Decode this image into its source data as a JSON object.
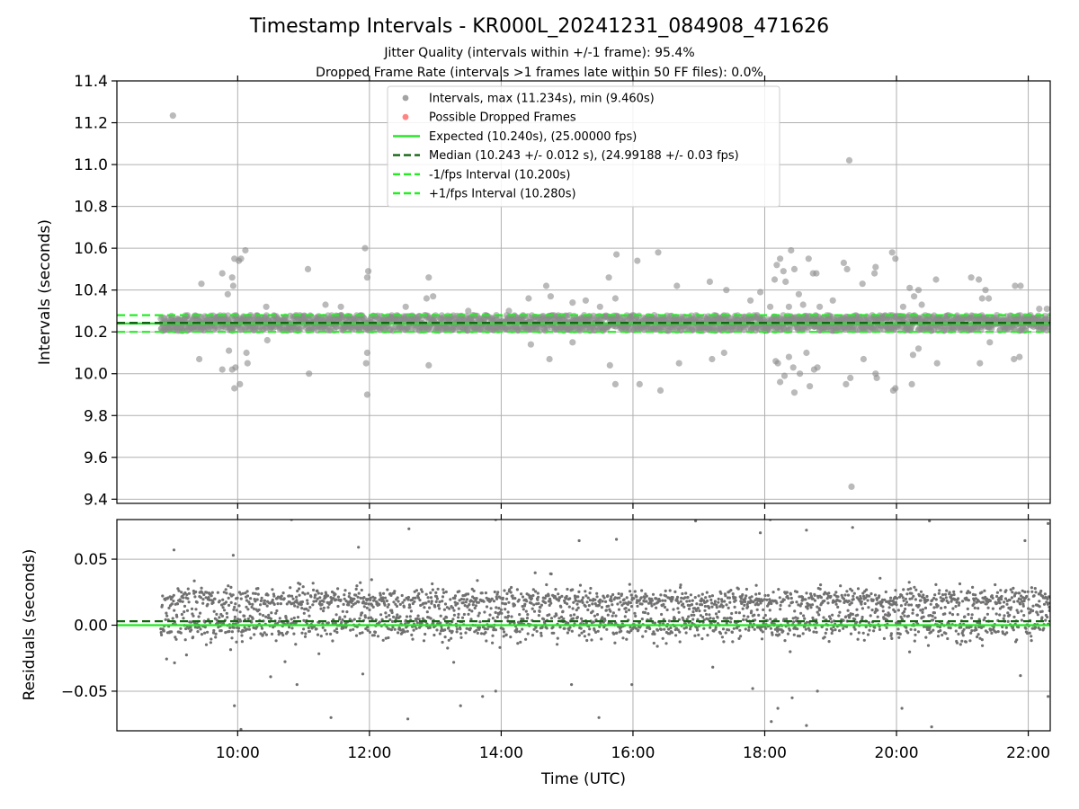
{
  "title": "Timestamp Intervals - KR000L_20241231_084908_471626",
  "subtitle_1": "Jitter Quality (intervals within +/-1 frame): 95.4%",
  "subtitle_2": "Dropped Frame Rate (intervals >1 frames late within 50 FF files): 0.0%",
  "colors": {
    "intervals": "#8c8c8c",
    "dropped": "#ff6666",
    "expected": "#22e622",
    "median": "#116611",
    "bound": "#22ee22",
    "residuals": "#707070"
  },
  "chart_data": [
    {
      "type": "scatter",
      "ylabel": "Intervals (seconds)",
      "xlim": [
        "08:10",
        "22:20"
      ],
      "ylim": [
        9.38,
        11.4
      ],
      "x_ticks": [
        "10:00",
        "12:00",
        "14:00",
        "16:00",
        "18:00",
        "20:00",
        "22:00"
      ],
      "y_ticks": [
        "9.4",
        "9.6",
        "9.8",
        "10.0",
        "10.2",
        "10.4",
        "10.6",
        "10.8",
        "11.0",
        "11.2",
        "11.4"
      ],
      "grid": true,
      "legend_position": "top-center",
      "legend": [
        {
          "label": "Intervals, max (11.234s), min (9.460s)",
          "kind": "dot",
          "color_key": "intervals"
        },
        {
          "label": "Possible Dropped Frames",
          "kind": "dot",
          "color_key": "dropped"
        },
        {
          "label": "Expected (10.240s), (25.00000 fps)",
          "kind": "line",
          "color_key": "expected"
        },
        {
          "label": "Median (10.243 +/- 0.012 s), (24.99188 +/- 0.03 fps)",
          "kind": "dash",
          "color_key": "median"
        },
        {
          "label": "-1/fps Interval (10.200s)",
          "kind": "dash",
          "color_key": "bound"
        },
        {
          "label": "+1/fps Interval (10.280s)",
          "kind": "dash",
          "color_key": "bound"
        }
      ],
      "lines": {
        "expected": 10.24,
        "median": 10.243,
        "lower": 10.2,
        "upper": 10.28
      },
      "data_x_range": [
        "08:50",
        "22:20"
      ],
      "band": {
        "low": 10.205,
        "high": 10.28
      },
      "outliers": [
        [
          "09:01",
          11.234
        ],
        [
          "09:46",
          10.48
        ],
        [
          "09:51",
          10.38
        ],
        [
          "09:55",
          10.46
        ],
        [
          "09:57",
          10.55
        ],
        [
          "09:56",
          10.42
        ],
        [
          "10:01",
          10.54
        ],
        [
          "10:03",
          10.55
        ],
        [
          "10:07",
          10.59
        ],
        [
          "09:27",
          10.43
        ],
        [
          "09:52",
          10.11
        ],
        [
          "09:55",
          10.02
        ],
        [
          "09:58",
          10.03
        ],
        [
          "09:46",
          10.02
        ],
        [
          "09:57",
          9.93
        ],
        [
          "10:02",
          9.95
        ],
        [
          "10:08",
          10.1
        ],
        [
          "10:09",
          10.05
        ],
        [
          "09:25",
          10.07
        ],
        [
          "10:26",
          10.32
        ],
        [
          "10:27",
          10.16
        ],
        [
          "11:04",
          10.5
        ],
        [
          "11:05",
          10.0
        ],
        [
          "11:56",
          10.6
        ],
        [
          "11:58",
          10.46
        ],
        [
          "11:59",
          10.49
        ],
        [
          "11:57",
          10.05
        ],
        [
          "11:58",
          10.1
        ],
        [
          "11:58",
          9.9
        ],
        [
          "11:20",
          10.33
        ],
        [
          "11:34",
          10.32
        ],
        [
          "12:33",
          10.32
        ],
        [
          "12:52",
          10.36
        ],
        [
          "12:54",
          10.46
        ],
        [
          "12:58",
          10.37
        ],
        [
          "12:54",
          10.04
        ],
        [
          "13:30",
          10.3
        ],
        [
          "14:07",
          10.3
        ],
        [
          "14:25",
          10.36
        ],
        [
          "14:27",
          10.14
        ],
        [
          "14:41",
          10.42
        ],
        [
          "14:45",
          10.37
        ],
        [
          "14:44",
          10.07
        ],
        [
          "15:05",
          10.34
        ],
        [
          "15:05",
          10.15
        ],
        [
          "15:17",
          10.35
        ],
        [
          "15:30",
          10.32
        ],
        [
          "15:38",
          10.46
        ],
        [
          "15:39",
          10.04
        ],
        [
          "15:45",
          10.57
        ],
        [
          "15:44",
          10.36
        ],
        [
          "15:44",
          9.95
        ],
        [
          "16:04",
          10.54
        ],
        [
          "16:06",
          9.95
        ],
        [
          "16:23",
          10.58
        ],
        [
          "16:25",
          9.92
        ],
        [
          "16:40",
          10.42
        ],
        [
          "16:42",
          10.05
        ],
        [
          "17:10",
          10.44
        ],
        [
          "17:12",
          10.07
        ],
        [
          "17:25",
          10.4
        ],
        [
          "17:23",
          10.1
        ],
        [
          "17:47",
          10.35
        ],
        [
          "17:56",
          10.39
        ],
        [
          "18:05",
          10.32
        ],
        [
          "18:09",
          10.45
        ],
        [
          "18:11",
          10.52
        ],
        [
          "18:14",
          10.55
        ],
        [
          "18:17",
          10.49
        ],
        [
          "18:19",
          10.44
        ],
        [
          "18:22",
          10.32
        ],
        [
          "18:24",
          10.59
        ],
        [
          "18:27",
          10.5
        ],
        [
          "18:31",
          10.38
        ],
        [
          "18:35",
          10.33
        ],
        [
          "18:40",
          10.55
        ],
        [
          "18:44",
          10.48
        ],
        [
          "18:47",
          10.48
        ],
        [
          "18:50",
          10.32
        ],
        [
          "18:10",
          10.06
        ],
        [
          "18:12",
          10.05
        ],
        [
          "18:14",
          9.96
        ],
        [
          "18:18",
          9.99
        ],
        [
          "18:22",
          10.08
        ],
        [
          "18:26",
          10.03
        ],
        [
          "18:27",
          9.91
        ],
        [
          "18:32",
          10.0
        ],
        [
          "18:38",
          10.1
        ],
        [
          "18:41",
          9.94
        ],
        [
          "18:45",
          10.02
        ],
        [
          "18:48",
          10.03
        ],
        [
          "19:02",
          10.35
        ],
        [
          "19:12",
          10.53
        ],
        [
          "19:15",
          10.5
        ],
        [
          "19:17",
          11.02
        ],
        [
          "19:14",
          9.95
        ],
        [
          "19:18",
          9.98
        ],
        [
          "19:19",
          9.46
        ],
        [
          "19:29",
          10.43
        ],
        [
          "19:30",
          10.07
        ],
        [
          "19:40",
          10.48
        ],
        [
          "19:41",
          10.51
        ],
        [
          "19:41",
          10.0
        ],
        [
          "19:42",
          9.98
        ],
        [
          "19:56",
          10.58
        ],
        [
          "19:59",
          10.55
        ],
        [
          "19:57",
          9.92
        ],
        [
          "19:59",
          9.93
        ],
        [
          "20:06",
          10.32
        ],
        [
          "20:12",
          10.41
        ],
        [
          "20:16",
          10.37
        ],
        [
          "20:20",
          10.4
        ],
        [
          "20:23",
          10.33
        ],
        [
          "20:14",
          9.95
        ],
        [
          "20:15",
          10.09
        ],
        [
          "20:20",
          10.12
        ],
        [
          "20:36",
          10.45
        ],
        [
          "20:37",
          10.05
        ],
        [
          "21:08",
          10.46
        ],
        [
          "21:15",
          10.45
        ],
        [
          "21:16",
          10.05
        ],
        [
          "21:18",
          10.36
        ],
        [
          "21:21",
          10.4
        ],
        [
          "21:24",
          10.36
        ],
        [
          "21:25",
          10.15
        ],
        [
          "21:48",
          10.42
        ],
        [
          "21:53",
          10.42
        ],
        [
          "21:47",
          10.07
        ],
        [
          "21:52",
          10.08
        ],
        [
          "22:10",
          10.31
        ],
        [
          "22:17",
          10.31
        ]
      ]
    },
    {
      "type": "scatter",
      "xlabel": "Time (UTC)",
      "ylabel": "Residuals (seconds)",
      "xlim": [
        "08:10",
        "22:20"
      ],
      "ylim": [
        -0.08,
        0.08
      ],
      "x_ticks": [
        "10:00",
        "12:00",
        "14:00",
        "16:00",
        "18:00",
        "20:00",
        "22:00"
      ],
      "y_ticks": [
        "−0.05",
        "0.00",
        "0.05"
      ],
      "grid": true,
      "lines": {
        "expected": 0.0,
        "median": 0.003
      },
      "data_x_range": [
        "08:50",
        "22:20"
      ],
      "clusters": [
        {
          "center": 0.019,
          "spread": 0.005
        },
        {
          "center": 0.0,
          "spread": 0.006
        }
      ],
      "outliers": [
        [
          "09:02",
          0.057
        ],
        [
          "09:56",
          0.053
        ],
        [
          "10:49",
          0.08
        ],
        [
          "11:50",
          0.059
        ],
        [
          "12:36",
          0.073
        ],
        [
          "13:55",
          0.08
        ],
        [
          "15:11",
          0.064
        ],
        [
          "15:45",
          0.065
        ],
        [
          "16:57",
          0.079
        ],
        [
          "17:56",
          0.07
        ],
        [
          "18:05",
          0.08
        ],
        [
          "18:38",
          0.072
        ],
        [
          "19:20",
          0.074
        ],
        [
          "20:30",
          0.079
        ],
        [
          "21:57",
          0.064
        ],
        [
          "22:18",
          0.077
        ],
        [
          "09:57",
          -0.061
        ],
        [
          "10:03",
          -0.079
        ],
        [
          "10:54",
          -0.045
        ],
        [
          "11:25",
          -0.07
        ],
        [
          "11:54",
          -0.037
        ],
        [
          "12:35",
          -0.071
        ],
        [
          "13:23",
          -0.061
        ],
        [
          "13:43",
          -0.054
        ],
        [
          "13:55",
          -0.05
        ],
        [
          "15:04",
          -0.045
        ],
        [
          "15:29",
          -0.07
        ],
        [
          "15:59",
          -0.045
        ],
        [
          "17:49",
          -0.048
        ],
        [
          "18:06",
          -0.073
        ],
        [
          "18:12",
          -0.063
        ],
        [
          "18:25",
          -0.055
        ],
        [
          "18:38",
          -0.076
        ],
        [
          "18:48",
          -0.05
        ],
        [
          "20:05",
          -0.063
        ],
        [
          "20:32",
          -0.077
        ],
        [
          "22:18",
          -0.054
        ]
      ]
    }
  ]
}
